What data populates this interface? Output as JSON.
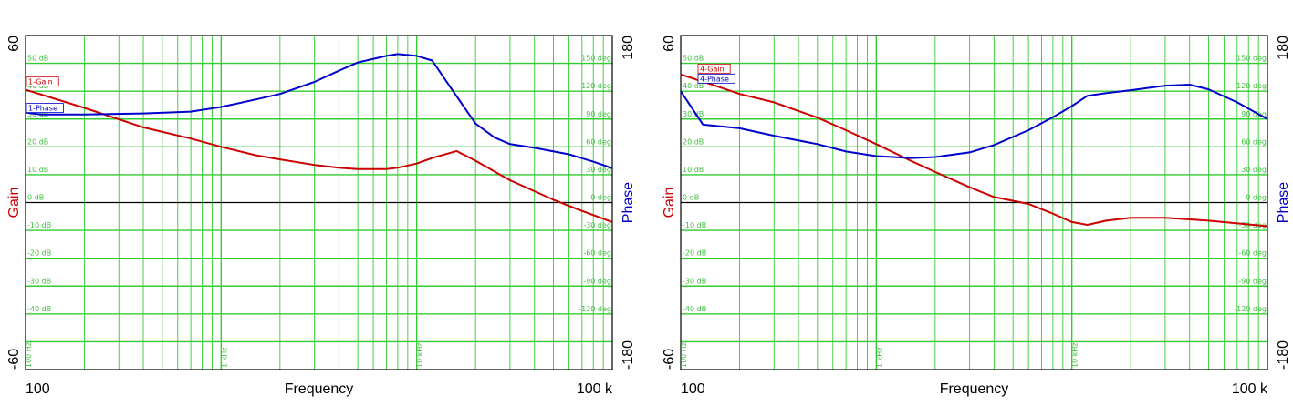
{
  "chart_data": [
    {
      "type": "line",
      "title": "",
      "xscale": "log",
      "xlim": [
        100,
        100000
      ],
      "xlabel": "Frequency",
      "x_end_labels": [
        "100",
        "100 k"
      ],
      "x_decade_labels": [
        "100 Hz",
        "1 kHz",
        "10 kHz"
      ],
      "y_left": {
        "label": "Gain",
        "lim": [
          -60,
          60
        ],
        "end_labels": [
          "60",
          "-60"
        ],
        "color": "#cc0000",
        "grid_labels": [
          "50 dB",
          "40 dB",
          "30 dB",
          "20 dB",
          "10 dB",
          "0 dB",
          "-10 dB",
          "-20 dB",
          "-30 dB",
          "-40 dB"
        ]
      },
      "y_right": {
        "label": "Phase",
        "lim": [
          -180,
          180
        ],
        "end_labels": [
          "180",
          "-180"
        ],
        "color": "#0000cc",
        "grid_labels": [
          "150 deg",
          "120 deg",
          "90 deg",
          "60 deg",
          "30 deg",
          "0 deg",
          "-30 deg",
          "-60 deg",
          "-90 deg",
          "-120 deg"
        ]
      },
      "grid_color": "#33cc33",
      "series": [
        {
          "name": "1-Gain",
          "axis": "left",
          "color": "#cc0000",
          "x": [
            100,
            200,
            400,
            700,
            1000,
            1500,
            2000,
            3000,
            4000,
            5000,
            7000,
            8000,
            10000,
            12000,
            16000,
            20000,
            30000,
            50000,
            70000,
            100000
          ],
          "y": [
            40.5,
            34,
            27,
            23,
            20,
            17,
            15.5,
            13.5,
            12.5,
            12,
            12,
            12.5,
            14,
            16,
            18.5,
            15,
            8,
            1,
            -3,
            -7
          ]
        },
        {
          "name": "1-Phase",
          "axis": "right",
          "color": "#0000cc",
          "x": [
            100,
            120,
            200,
            400,
            700,
            1000,
            1500,
            2000,
            3000,
            4000,
            5000,
            7000,
            8000,
            10000,
            12000,
            15000,
            20000,
            25000,
            30000,
            40000,
            60000,
            80000,
            100000
          ],
          "y": [
            97,
            95,
            95,
            96,
            98,
            103,
            111,
            117,
            130,
            142,
            151,
            158,
            160,
            158,
            153,
            123,
            85,
            70,
            63,
            59,
            52,
            44,
            37
          ]
        }
      ]
    },
    {
      "type": "line",
      "title": "",
      "xscale": "log",
      "xlim": [
        100,
        100000
      ],
      "xlabel": "Frequency",
      "x_end_labels": [
        "100",
        "100 k"
      ],
      "x_decade_labels": [
        "100 Hz",
        "1 kHz",
        "10 kHz"
      ],
      "y_left": {
        "label": "Gain",
        "lim": [
          -60,
          60
        ],
        "end_labels": [
          "60",
          "-60"
        ],
        "color": "#cc0000",
        "grid_labels": [
          "50 dB",
          "40 dB",
          "30 dB",
          "20 dB",
          "10 dB",
          "0 dB",
          "-10 dB",
          "-20 dB",
          "-30 dB",
          "-40 dB"
        ]
      },
      "y_right": {
        "label": "Phase",
        "lim": [
          -180,
          180
        ],
        "end_labels": [
          "180",
          "-180"
        ],
        "color": "#0000cc",
        "grid_labels": [
          "150 deg",
          "120 deg",
          "90 deg",
          "60 deg",
          "30 deg",
          "0 deg",
          "-30 deg",
          "-60 deg",
          "-90 deg",
          "-120 deg"
        ]
      },
      "grid_color": "#33cc33",
      "series": [
        {
          "name": "4-Gain",
          "axis": "left",
          "color": "#cc0000",
          "x": [
            100,
            150,
            200,
            300,
            500,
            700,
            1000,
            1500,
            2000,
            3000,
            4000,
            6000,
            8000,
            10000,
            12000,
            15000,
            20000,
            30000,
            50000,
            100000
          ],
          "y": [
            46,
            42,
            39,
            36,
            30.5,
            26,
            21,
            15,
            11,
            5.5,
            2,
            -0.5,
            -4,
            -7,
            -8,
            -6.5,
            -5.5,
            -5.5,
            -6.5,
            -8.5
          ]
        },
        {
          "name": "4-Phase",
          "axis": "right",
          "color": "#0000cc",
          "x": [
            100,
            130,
            200,
            300,
            500,
            700,
            1000,
            1500,
            2000,
            3000,
            4000,
            6000,
            8000,
            10000,
            12000,
            15000,
            20000,
            30000,
            40000,
            50000,
            70000,
            100000
          ],
          "y": [
            120,
            84,
            80,
            72,
            63,
            55,
            50,
            48,
            49,
            54,
            62,
            78,
            92,
            104,
            115,
            118,
            121,
            126,
            127,
            122,
            108,
            90
          ]
        }
      ]
    }
  ]
}
